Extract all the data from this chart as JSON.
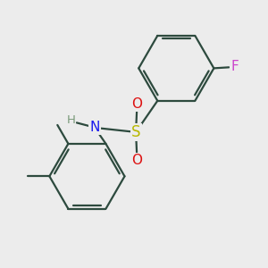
{
  "background_color": "#ececec",
  "bond_color": "#2d4a3e",
  "bond_width": 1.6,
  "F_color": "#cc44cc",
  "N_color": "#1a1aee",
  "S_color": "#b8b800",
  "O_color": "#dd1111",
  "H_color": "#7a9a7a",
  "C_color": "#2d4a3e",
  "figsize": [
    3.0,
    3.0
  ],
  "dpi": 100,
  "xlim": [
    0.1,
    2.9
  ],
  "ylim": [
    0.1,
    2.9
  ]
}
